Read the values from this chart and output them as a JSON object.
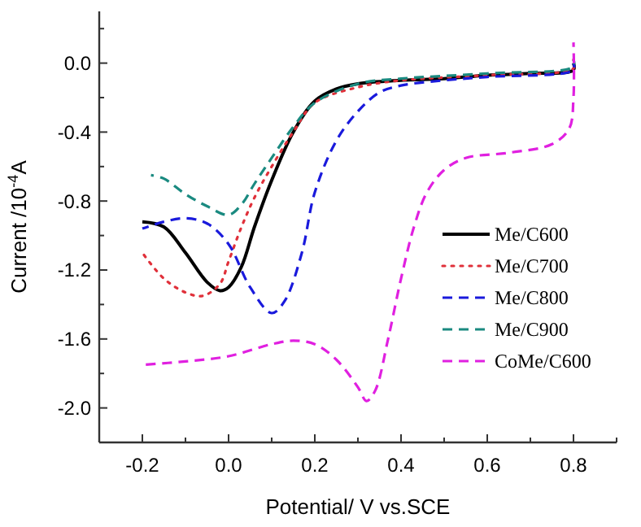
{
  "chart_data": {
    "type": "line",
    "xlabel": "Potential/ V vs.SCE",
    "ylabel": "Current /10$^{-4}$A",
    "xlim": [
      -0.3,
      0.9
    ],
    "ylim": [
      -2.2,
      0.3
    ],
    "xticks": [
      {
        "value": -0.3,
        "label": null
      },
      -0.2,
      {
        "value": -0.1,
        "label": null
      },
      {
        "value": 0,
        "label": "0.0"
      },
      {
        "value": 0.1,
        "label": null
      },
      0.2,
      {
        "value": 0.3,
        "label": null
      },
      0.4,
      {
        "value": 0.5,
        "label": null
      },
      0.6,
      {
        "value": 0.7,
        "label": null
      },
      0.8,
      {
        "value": 0.9,
        "label": null
      }
    ],
    "yticks": [
      {
        "value": -2.2,
        "label": null
      },
      {
        "value": -2,
        "label": "-2.0"
      },
      {
        "value": -1.8,
        "label": null
      },
      -1.6,
      {
        "value": -1.4,
        "label": null
      },
      -1.2,
      {
        "value": -1,
        "label": null
      },
      -0.8,
      {
        "value": -0.6,
        "label": null
      },
      -0.4,
      {
        "value": -0.2,
        "label": null
      },
      {
        "value": 0,
        "label": "0.0"
      },
      {
        "value": 0.2,
        "label": null
      }
    ],
    "grid": false,
    "legend": "right",
    "series": [
      {
        "name": "Me/C600",
        "color": "#000000",
        "line_style": "solid",
        "x": [
          -0.2,
          -0.15,
          -0.1,
          -0.05,
          -0.02,
          0,
          0.03,
          0.06,
          0.1,
          0.15,
          0.2,
          0.25,
          0.3,
          0.4,
          0.5,
          0.6,
          0.7,
          0.8,
          0.8
        ],
        "values": [
          -0.92,
          -0.95,
          -1.1,
          -1.27,
          -1.32,
          -1.3,
          -1.18,
          -0.95,
          -0.68,
          -0.4,
          -0.22,
          -0.15,
          -0.12,
          -0.1,
          -0.09,
          -0.07,
          -0.06,
          -0.04,
          0
        ]
      },
      {
        "name": "Me/C700",
        "color": "#e0303a",
        "line_style": "dotted",
        "x": [
          -0.2,
          -0.15,
          -0.1,
          -0.06,
          -0.02,
          0,
          0.03,
          0.06,
          0.1,
          0.15,
          0.2,
          0.3,
          0.4,
          0.6,
          0.8,
          0.8
        ],
        "values": [
          -1.1,
          -1.25,
          -1.33,
          -1.35,
          -1.28,
          -1.15,
          -0.95,
          -0.78,
          -0.6,
          -0.4,
          -0.23,
          -0.14,
          -0.1,
          -0.07,
          -0.03,
          0.02
        ]
      },
      {
        "name": "Me/C800",
        "color": "#1a1adc",
        "line_style": "dashed",
        "x": [
          -0.2,
          -0.15,
          -0.1,
          -0.05,
          0,
          0.05,
          0.1,
          0.13,
          0.17,
          0.2,
          0.25,
          0.3,
          0.35,
          0.4,
          0.5,
          0.6,
          0.8,
          0.8
        ],
        "values": [
          -0.96,
          -0.92,
          -0.9,
          -0.93,
          -1.05,
          -1.3,
          -1.45,
          -1.38,
          -1.1,
          -0.75,
          -0.45,
          -0.28,
          -0.17,
          -0.13,
          -0.1,
          -0.08,
          -0.04,
          0
        ]
      },
      {
        "name": "Me/C900",
        "color": "#1a8a80",
        "line_style": "dashed",
        "x": [
          -0.18,
          -0.15,
          -0.1,
          -0.05,
          0,
          0.03,
          0.06,
          0.1,
          0.15,
          0.2,
          0.3,
          0.4,
          0.6,
          0.8,
          0.8
        ],
        "values": [
          -0.65,
          -0.67,
          -0.76,
          -0.83,
          -0.88,
          -0.82,
          -0.7,
          -0.55,
          -0.37,
          -0.23,
          -0.12,
          -0.09,
          -0.06,
          -0.02,
          0.02
        ]
      },
      {
        "name": "CoMe/C600",
        "color": "#e020e0",
        "line_style": "dashed",
        "x": [
          -0.2,
          -0.1,
          0,
          0.1,
          0.15,
          0.2,
          0.25,
          0.3,
          0.32,
          0.34,
          0.37,
          0.4,
          0.43,
          0.46,
          0.5,
          0.55,
          0.65,
          0.75,
          0.79,
          0.8,
          0.8
        ],
        "values": [
          -1.75,
          -1.73,
          -1.7,
          -1.63,
          -1.61,
          -1.63,
          -1.72,
          -1.88,
          -1.96,
          -1.9,
          -1.6,
          -1.25,
          -0.95,
          -0.75,
          -0.62,
          -0.55,
          -0.52,
          -0.47,
          -0.38,
          -0.2,
          0.12
        ]
      }
    ]
  }
}
